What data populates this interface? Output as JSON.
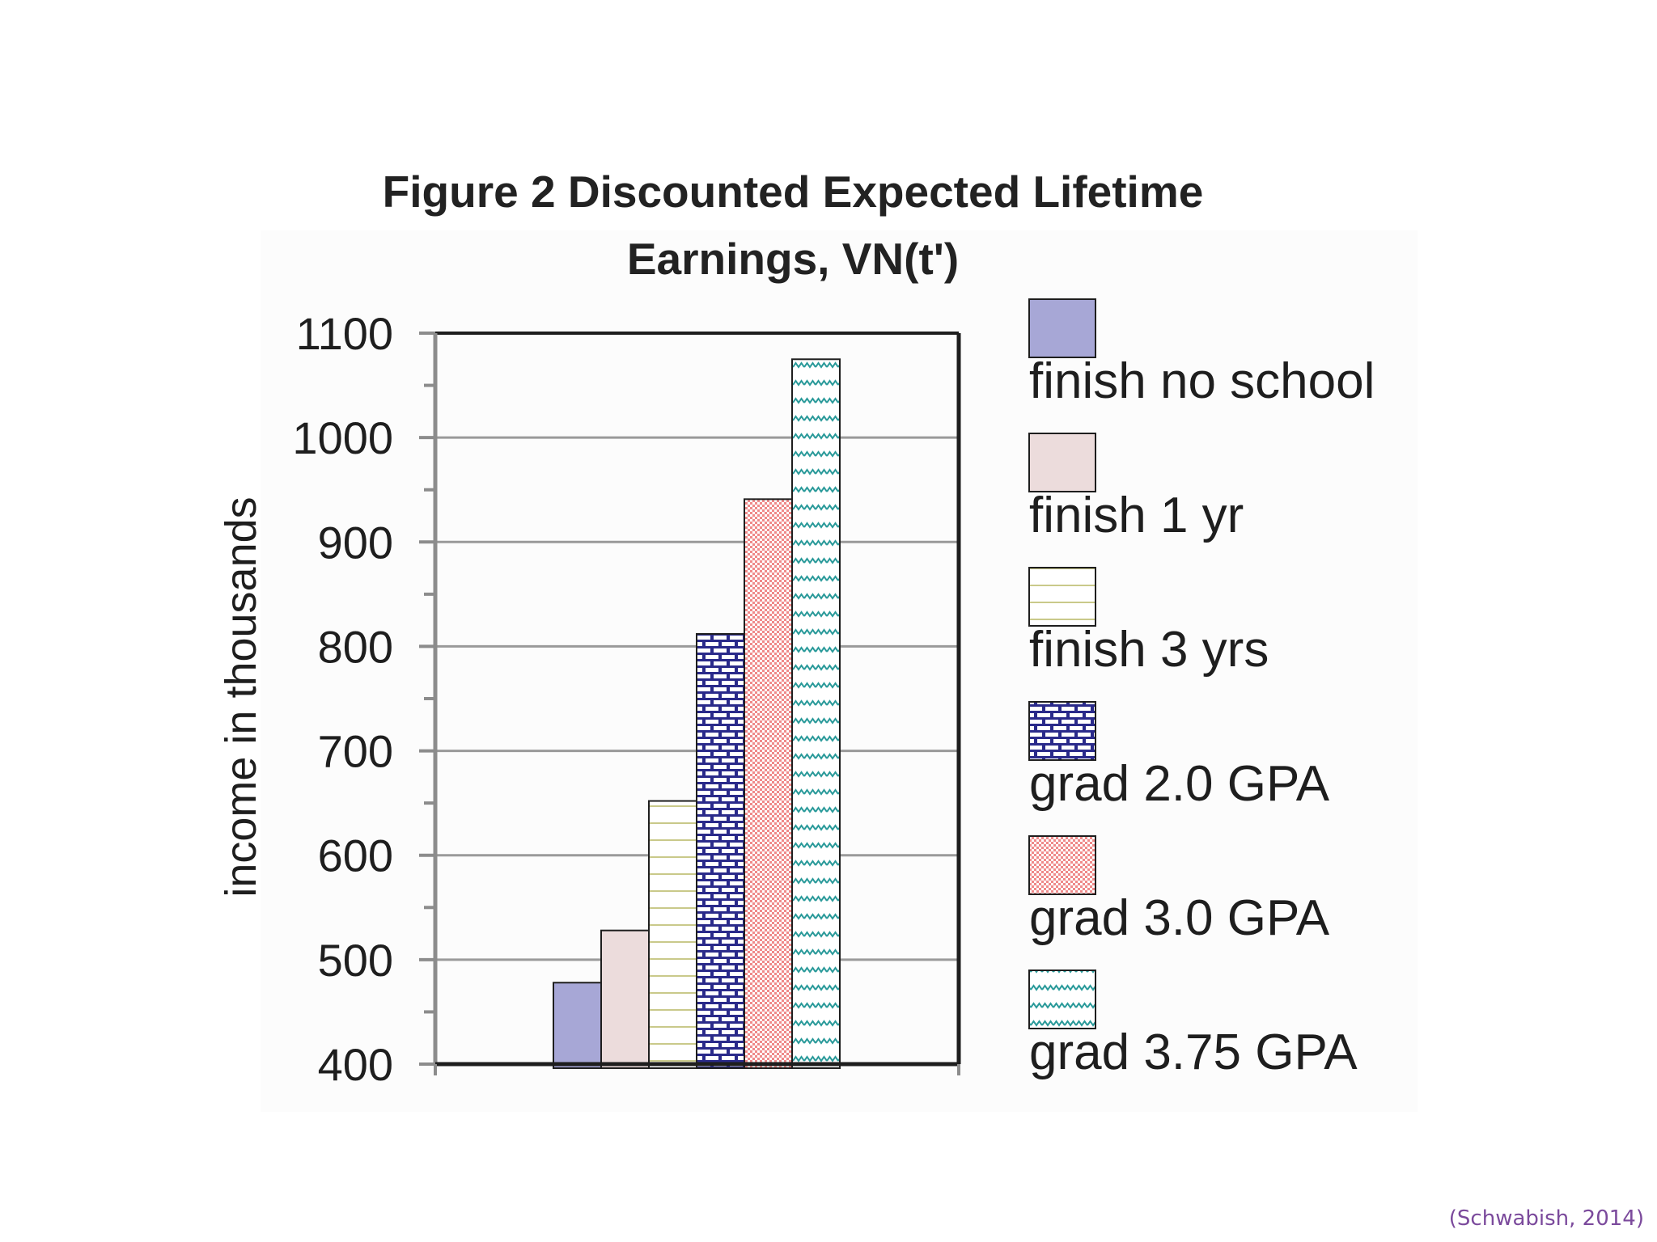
{
  "chart_data": {
    "type": "bar",
    "title_lines": [
      "Figure 2 Discounted Expected Lifetime",
      "Earnings, VN(t')"
    ],
    "xlabel": "",
    "ylabel": "income in thousands",
    "ylim": [
      400,
      1100
    ],
    "yticks": [
      "400",
      "500",
      "600",
      "700",
      "800",
      "900",
      "1000",
      "1100"
    ],
    "grid": true,
    "legend_position": "right",
    "series": [
      {
        "name": "finish no school",
        "value": 478,
        "color": "#a7a7d6",
        "pattern": "solid"
      },
      {
        "name": "finish 1 yr",
        "value": 528,
        "color": "#ecdcdc",
        "pattern": "solid-light"
      },
      {
        "name": "finish 3 yrs",
        "value": 652,
        "color": "#ffffff",
        "pattern": "horizontal-lines"
      },
      {
        "name": "grad 2.0 GPA",
        "value": 812,
        "color": "#2a2a8a",
        "pattern": "bricks"
      },
      {
        "name": "grad 3.0 GPA",
        "value": 941,
        "color": "#f08a8a",
        "pattern": "checker"
      },
      {
        "name": "grad 3.75 GPA",
        "value": 1075,
        "color": "#2a9a9a",
        "pattern": "zigzag"
      }
    ]
  },
  "citation": "(Schwabish, 2014)"
}
